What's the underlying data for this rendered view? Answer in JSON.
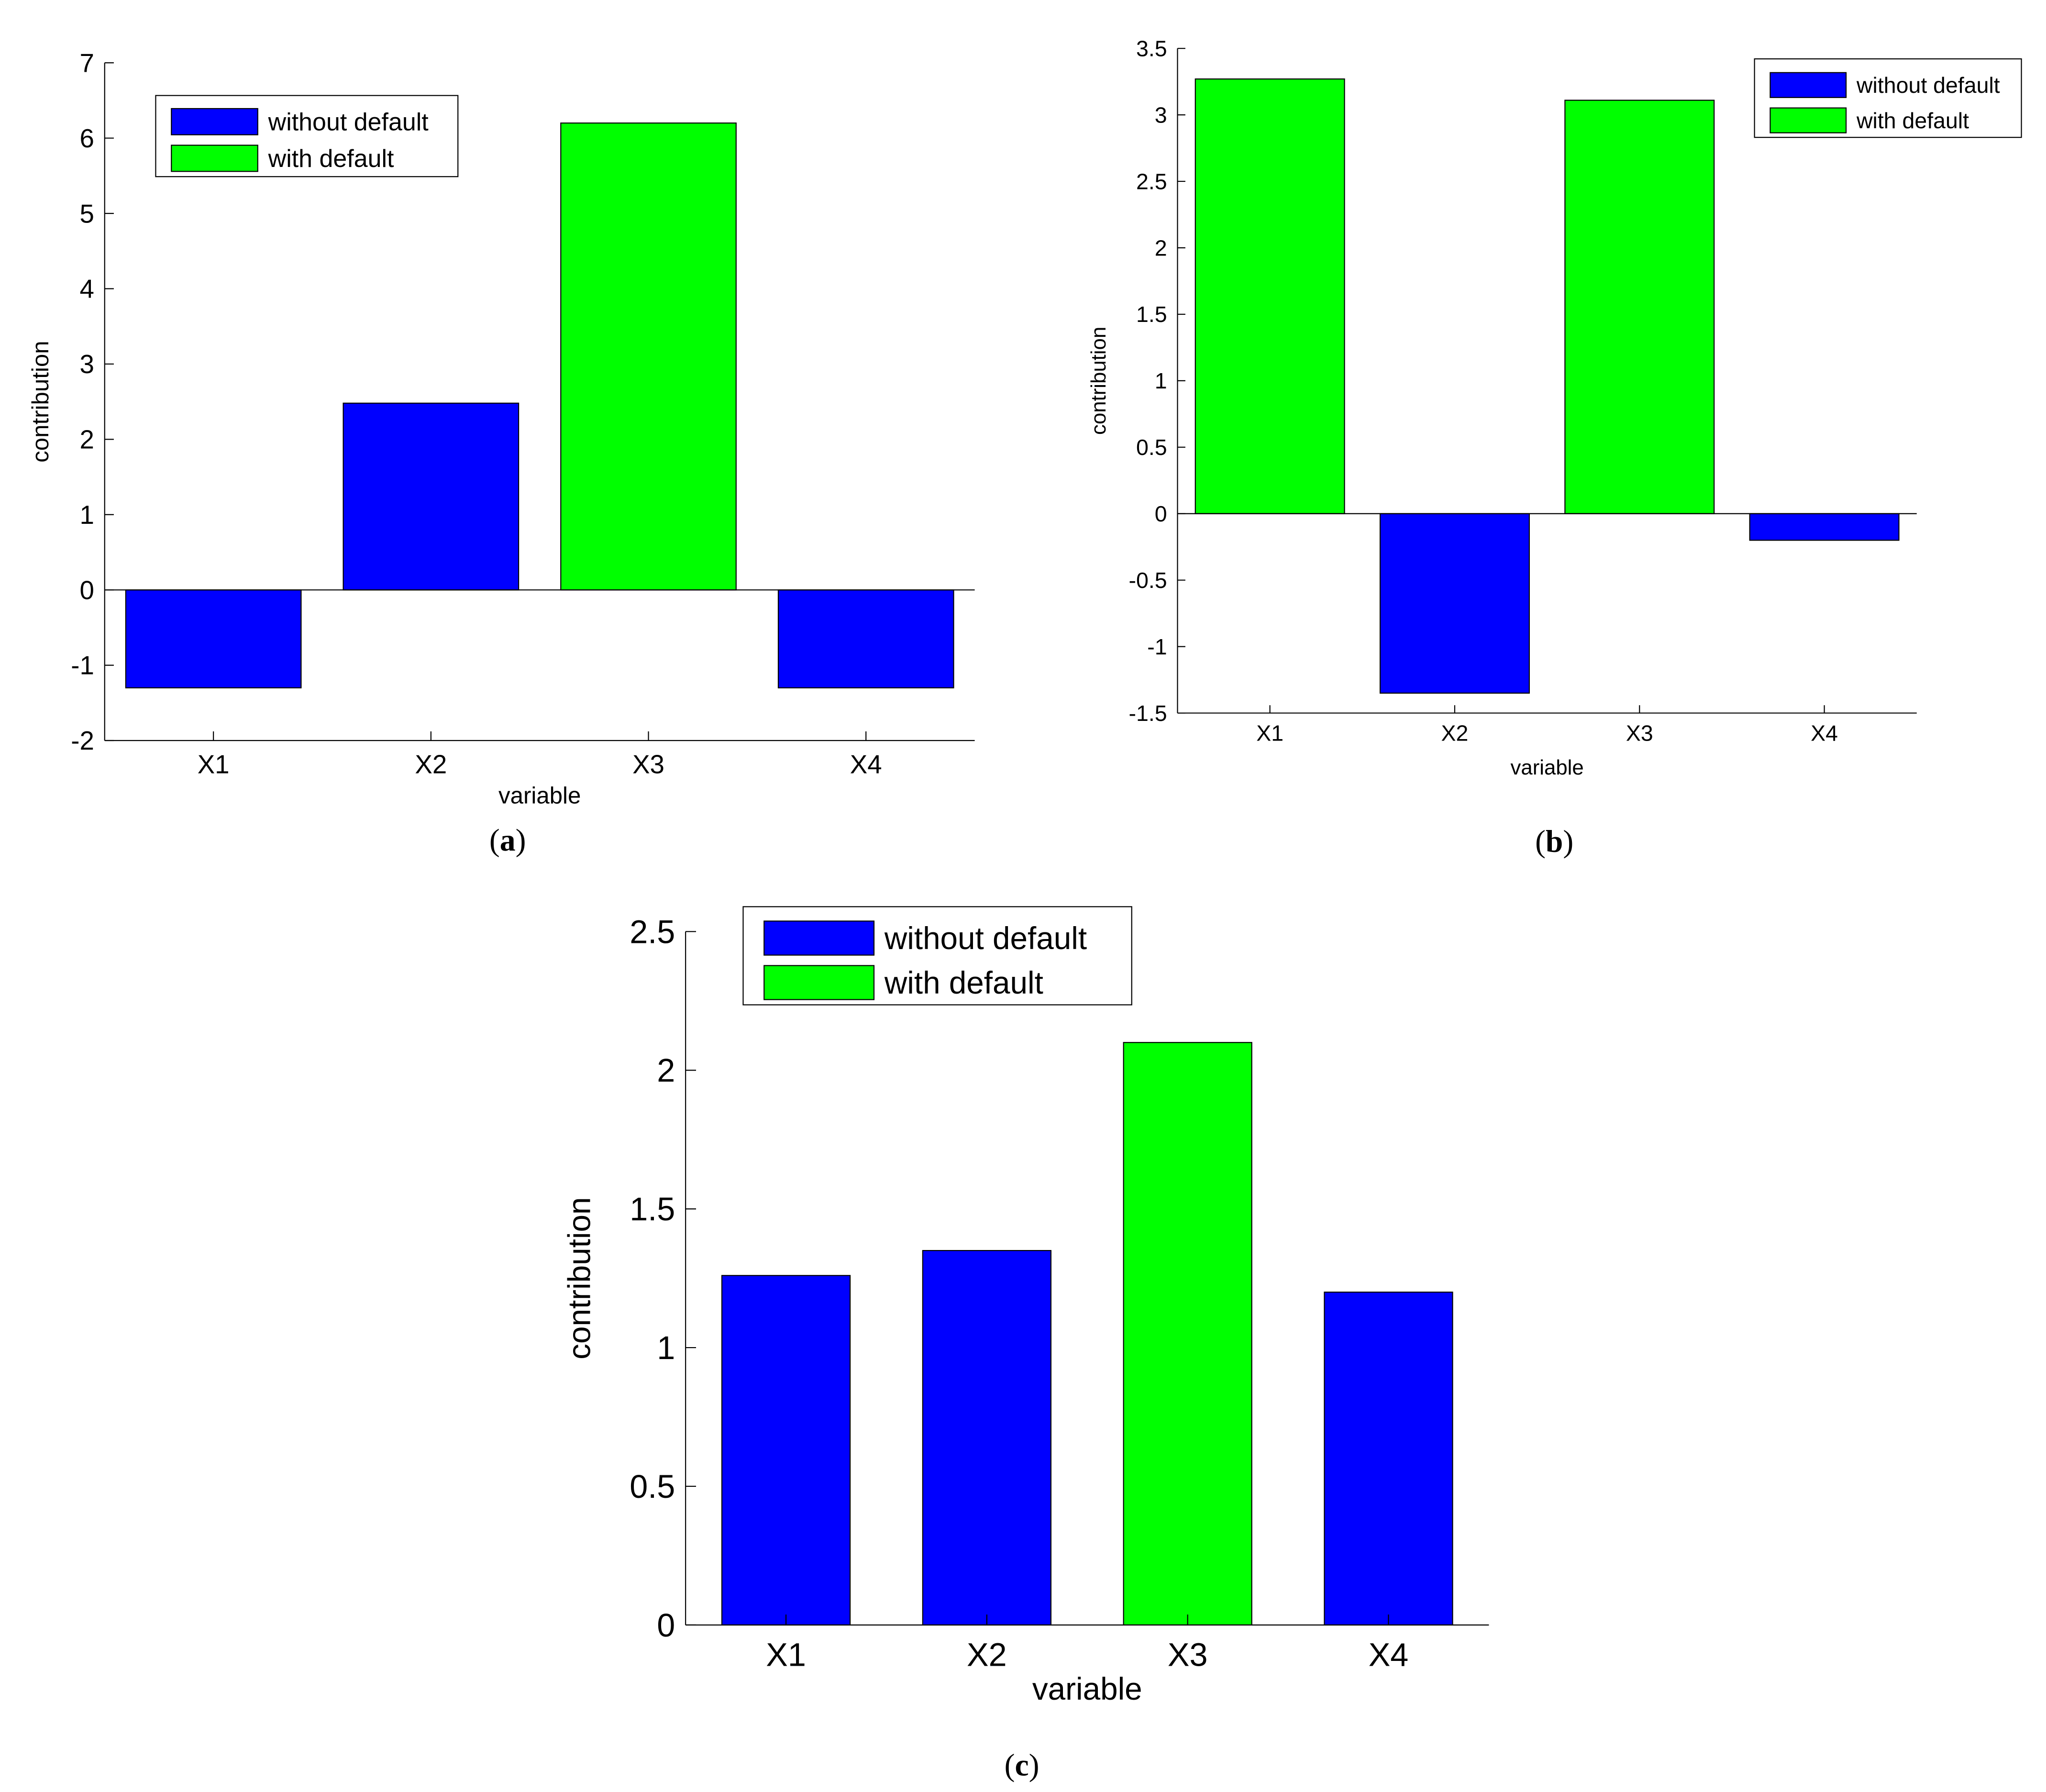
{
  "figure": {
    "charts": [
      {
        "panel_letter": "a"
      },
      {
        "panel_letter": "b"
      },
      {
        "panel_letter": "c"
      }
    ]
  },
  "colors": {
    "without_default": "#0000FF",
    "with_default": "#00FF00",
    "axis": "#000000"
  },
  "chart_data": [
    {
      "type": "bar",
      "categories": [
        "X1",
        "X2",
        "X3",
        "X4"
      ],
      "values": [
        -1.3,
        2.48,
        6.2,
        -1.3
      ],
      "bar_series": [
        "without default",
        "without default",
        "with default",
        "without default"
      ],
      "legend": [
        "without default",
        "with default"
      ],
      "legend_position": "top-left",
      "xlabel": "variable",
      "ylabel": "contribution",
      "ylim": [
        -2,
        7
      ],
      "yticks": [
        -2,
        -1,
        0,
        1,
        2,
        3,
        4,
        5,
        6,
        7
      ],
      "ytick_labels": [
        "-2",
        "-1",
        "0",
        "1",
        "2",
        "3",
        "4",
        "5",
        "6",
        "7"
      ],
      "caption_letter": "a"
    },
    {
      "type": "bar",
      "categories": [
        "X1",
        "X2",
        "X3",
        "X4"
      ],
      "values": [
        3.27,
        -1.35,
        3.11,
        -0.2
      ],
      "bar_series": [
        "with default",
        "without default",
        "with default",
        "without default"
      ],
      "legend": [
        "without default",
        "with default"
      ],
      "legend_position": "top-right",
      "xlabel": "variable",
      "ylabel": "contribution",
      "ylim": [
        -1.5,
        3.5
      ],
      "yticks": [
        -1.5,
        -1,
        -0.5,
        0,
        0.5,
        1,
        1.5,
        2,
        2.5,
        3,
        3.5
      ],
      "ytick_labels": [
        "-1.5",
        "-1",
        "-0.5",
        "0",
        "0.5",
        "1",
        "1.5",
        "2",
        "2.5",
        "3",
        "3.5"
      ],
      "caption_letter": "b"
    },
    {
      "type": "bar",
      "categories": [
        "X1",
        "X2",
        "X3",
        "X4"
      ],
      "values": [
        1.26,
        1.35,
        2.1,
        1.2
      ],
      "bar_series": [
        "without default",
        "without default",
        "with default",
        "without default"
      ],
      "legend": [
        "without default",
        "with default"
      ],
      "legend_position": "top-left",
      "xlabel": "variable",
      "ylabel": "contribution",
      "ylim": [
        0,
        2.5
      ],
      "yticks": [
        0,
        0.5,
        1,
        1.5,
        2,
        2.5
      ],
      "ytick_labels": [
        "0",
        "0.5",
        "1",
        "1.5",
        "2",
        "2.5"
      ],
      "caption_letter": "c"
    }
  ]
}
